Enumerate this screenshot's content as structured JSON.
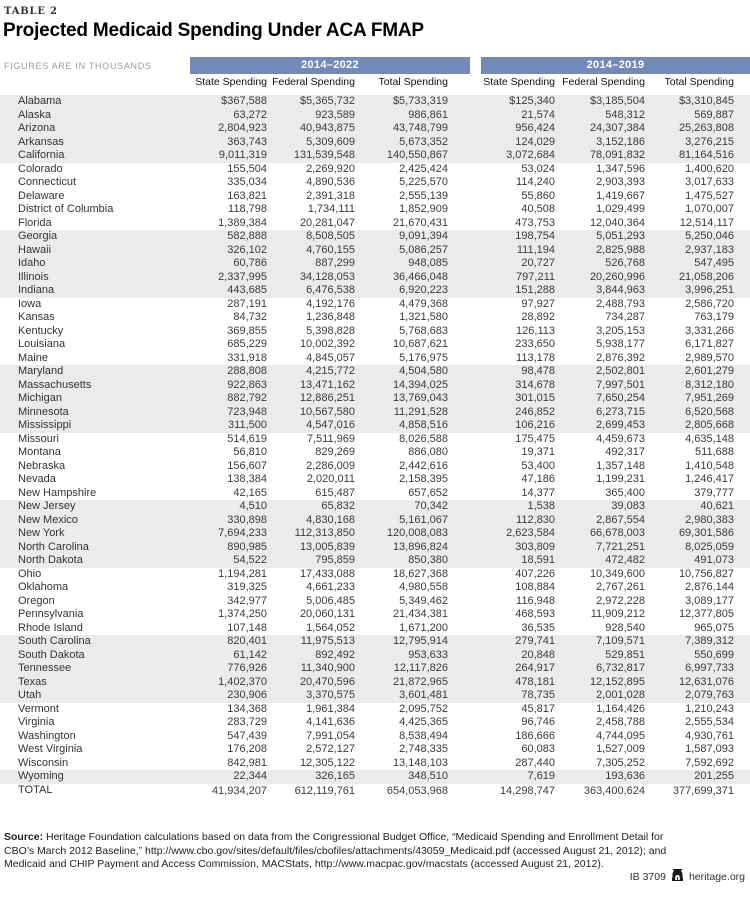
{
  "page": {
    "table_label": "TABLE 2",
    "title": "Projected Medicaid Spending Under ACA FMAP",
    "units_note": "FIGURES ARE IN THOUSANDS"
  },
  "colors": {
    "band_blue": "#7289ba",
    "stripe_gray": "#ebebeb"
  },
  "chart_data": {
    "type": "table",
    "group_headers": [
      "2014–2022",
      "2014–2019"
    ],
    "columns": [
      "State Spending",
      "Federal Spending",
      "Total Spending",
      "State Spending",
      "Federal Spending",
      "Total Spending"
    ],
    "rows": [
      [
        "Alabama",
        "$367,588",
        "$5,365,732",
        "$5,733,319",
        "$125,340",
        "$3,185,504",
        "$3,310,845"
      ],
      [
        "Alaska",
        "63,272",
        "923,589",
        "986,861",
        "21,574",
        "548,312",
        "569,887"
      ],
      [
        "Arizona",
        "2,804,923",
        "40,943,875",
        "43,748,799",
        "956,424",
        "24,307,384",
        "25,263,808"
      ],
      [
        "Arkansas",
        "363,743",
        "5,309,609",
        "5,673,352",
        "124,029",
        "3,152,186",
        "3,276,215"
      ],
      [
        "California",
        "9,011,319",
        "131,539,548",
        "140,550,867",
        "3,072,684",
        "78,091,832",
        "81,164,516"
      ],
      [
        "Colorado",
        "155,504",
        "2,269,920",
        "2,425,424",
        "53,024",
        "1,347,596",
        "1,400,620"
      ],
      [
        "Connecticut",
        "335,034",
        "4,890,536",
        "5,225,570",
        "114,240",
        "2,903,393",
        "3,017,633"
      ],
      [
        "Delaware",
        "163,821",
        "2,391,318",
        "2,555,139",
        "55,860",
        "1,419,667",
        "1,475,527"
      ],
      [
        "District of Columbia",
        "118,798",
        "1,734,111",
        "1,852,909",
        "40,508",
        "1,029,499",
        "1,070,007"
      ],
      [
        "Florida",
        "1,389,384",
        "20,281,047",
        "21,670,431",
        "473,753",
        "12,040,364",
        "12,514,117"
      ],
      [
        "Georgia",
        "582,888",
        "8,508,505",
        "9,091,394",
        "198,754",
        "5,051,293",
        "5,250,046"
      ],
      [
        "Hawaii",
        "326,102",
        "4,760,155",
        "5,086,257",
        "111,194",
        "2,825,988",
        "2,937,183"
      ],
      [
        "Idaho",
        "60,786",
        "887,299",
        "948,085",
        "20,727",
        "526,768",
        "547,495"
      ],
      [
        "Illinois",
        "2,337,995",
        "34,128,053",
        "36,466,048",
        "797,211",
        "20,260,996",
        "21,058,206"
      ],
      [
        "Indiana",
        "443,685",
        "6,476,538",
        "6,920,223",
        "151,288",
        "3,844,963",
        "3,996,251"
      ],
      [
        "Iowa",
        "287,191",
        "4,192,176",
        "4,479,368",
        "97,927",
        "2,488,793",
        "2,586,720"
      ],
      [
        "Kansas",
        "84,732",
        "1,236,848",
        "1,321,580",
        "28,892",
        "734,287",
        "763,179"
      ],
      [
        "Kentucky",
        "369,855",
        "5,398,828",
        "5,768,683",
        "126,113",
        "3,205,153",
        "3,331,266"
      ],
      [
        "Louisiana",
        "685,229",
        "10,002,392",
        "10,687,621",
        "233,650",
        "5,938,177",
        "6,171,827"
      ],
      [
        "Maine",
        "331,918",
        "4,845,057",
        "5,176,975",
        "113,178",
        "2,876,392",
        "2,989,570"
      ],
      [
        "Maryland",
        "288,808",
        "4,215,772",
        "4,504,580",
        "98,478",
        "2,502,801",
        "2,601,279"
      ],
      [
        "Massachusetts",
        "922,863",
        "13,471,162",
        "14,394,025",
        "314,678",
        "7,997,501",
        "8,312,180"
      ],
      [
        "Michigan",
        "882,792",
        "12,886,251",
        "13,769,043",
        "301,015",
        "7,650,254",
        "7,951,269"
      ],
      [
        "Minnesota",
        "723,948",
        "10,567,580",
        "11,291,528",
        "246,852",
        "6,273,715",
        "6,520,568"
      ],
      [
        "Mississippi",
        "311,500",
        "4,547,016",
        "4,858,516",
        "106,216",
        "2,699,453",
        "2,805,668"
      ],
      [
        "Missouri",
        "514,619",
        "7,511,969",
        "8,026,588",
        "175,475",
        "4,459,673",
        "4,635,148"
      ],
      [
        "Montana",
        "56,810",
        "829,269",
        "886,080",
        "19,371",
        "492,317",
        "511,688"
      ],
      [
        "Nebraska",
        "156,607",
        "2,286,009",
        "2,442,616",
        "53,400",
        "1,357,148",
        "1,410,548"
      ],
      [
        "Nevada",
        "138,384",
        "2,020,011",
        "2,158,395",
        "47,186",
        "1,199,231",
        "1,246,417"
      ],
      [
        "New Hampshire",
        "42,165",
        "615,487",
        "657,652",
        "14,377",
        "365,400",
        "379,777"
      ],
      [
        "New Jersey",
        "4,510",
        "65,832",
        "70,342",
        "1,538",
        "39,083",
        "40,621"
      ],
      [
        "New Mexico",
        "330,898",
        "4,830,168",
        "5,161,067",
        "112,830",
        "2,867,554",
        "2,980,383"
      ],
      [
        "New York",
        "7,694,233",
        "112,313,850",
        "120,008,083",
        "2,623,584",
        "66,678,003",
        "69,301,586"
      ],
      [
        "North Carolina",
        "890,985",
        "13,005,839",
        "13,896,824",
        "303,809",
        "7,721,251",
        "8,025,059"
      ],
      [
        "North Dakota",
        "54,522",
        "795,859",
        "850,380",
        "18,591",
        "472,482",
        "491,073"
      ],
      [
        "Ohio",
        "1,194,281",
        "17,433,088",
        "18,627,368",
        "407,226",
        "10,349,600",
        "10,756,827"
      ],
      [
        "Oklahoma",
        "319,325",
        "4,661,233",
        "4,980,558",
        "108,884",
        "2,767,261",
        "2,876,144"
      ],
      [
        "Oregon",
        "342,977",
        "5,006,485",
        "5,349,462",
        "116,948",
        "2,972,228",
        "3,089,177"
      ],
      [
        "Pennsylvania",
        "1,374,250",
        "20,060,131",
        "21,434,381",
        "468,593",
        "11,909,212",
        "12,377,805"
      ],
      [
        "Rhode Island",
        "107,148",
        "1,564,052",
        "1,671,200",
        "36,535",
        "928,540",
        "965,075"
      ],
      [
        "South Carolina",
        "820,401",
        "11,975,513",
        "12,795,914",
        "279,741",
        "7,109,571",
        "7,389,312"
      ],
      [
        "South Dakota",
        "61,142",
        "892,492",
        "953,633",
        "20,848",
        "529,851",
        "550,699"
      ],
      [
        "Tennessee",
        "776,926",
        "11,340,900",
        "12,117,826",
        "264,917",
        "6,732,817",
        "6,997,733"
      ],
      [
        "Texas",
        "1,402,370",
        "20,470,596",
        "21,872,965",
        "478,181",
        "12,152,895",
        "12,631,076"
      ],
      [
        "Utah",
        "230,906",
        "3,370,575",
        "3,601,481",
        "78,735",
        "2,001,028",
        "2,079,763"
      ],
      [
        "Vermont",
        "134,368",
        "1,961,384",
        "2,095,752",
        "45,817",
        "1,164,426",
        "1,210,243"
      ],
      [
        "Virginia",
        "283,729",
        "4,141,636",
        "4,425,365",
        "96,746",
        "2,458,788",
        "2,555,534"
      ],
      [
        "Washington",
        "547,439",
        "7,991,054",
        "8,538,494",
        "186,666",
        "4,744,095",
        "4,930,761"
      ],
      [
        "West Virginia",
        "176,208",
        "2,572,127",
        "2,748,335",
        "60,083",
        "1,527,009",
        "1,587,093"
      ],
      [
        "Wisconsin",
        "842,981",
        "12,305,122",
        "13,148,103",
        "287,440",
        "7,305,252",
        "7,592,692"
      ],
      [
        "Wyoming",
        "22,344",
        "326,165",
        "348,510",
        "7,619",
        "193,636",
        "201,255"
      ]
    ],
    "total_row": [
      "TOTAL",
      "41,934,207",
      "612,119,761",
      "654,053,968",
      "14,298,747",
      "363,400,624",
      "377,699,371"
    ]
  },
  "source": {
    "label": "Source:",
    "text": " Heritage Foundation calculations based on data from the Congressional Budget Office, “Medicaid Spending and Enrollment Detail for CBO’s March 2012 Baseline,” http://www.cbo.gov/sites/default/files/cbofiles/attachments/43059_Medicaid.pdf (accessed August 21, 2012); and Medicaid and CHIP Payment and Access Commission, MACStats, http://www.macpac.gov/macstats (accessed August 21, 2012)."
  },
  "footer": {
    "doc_id": "IB 3709",
    "site": "heritage.org"
  }
}
